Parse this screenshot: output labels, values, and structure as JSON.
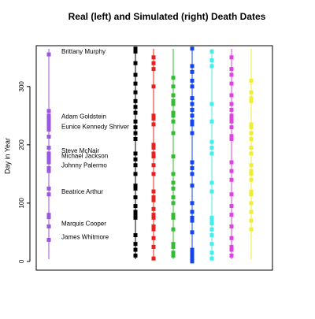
{
  "chart_data": {
    "type": "strip",
    "title": "Real (left) and Simulated (right) Death Dates",
    "ylabel": "Day in Year",
    "ylim": [
      -15,
      370
    ],
    "yticks": [
      0,
      100,
      200,
      300
    ],
    "series": [
      {
        "color": "#9b55e0",
        "values": [
          355,
          258,
          250,
          244,
          238,
          232,
          226,
          214,
          195,
          185,
          180,
          176,
          170,
          160,
          155,
          125,
          115,
          80,
          76,
          60,
          37
        ]
      },
      {
        "color": "#000000",
        "values": [
          365,
          360,
          340,
          320,
          305,
          290,
          275,
          265,
          255,
          240,
          230,
          220,
          210,
          185,
          175,
          165,
          150,
          130,
          125,
          110,
          95,
          85,
          80,
          75,
          45,
          30,
          20,
          10
        ]
      },
      {
        "color": "#e82020",
        "values": [
          350,
          340,
          330,
          300,
          250,
          245,
          235,
          200,
          195,
          185,
          180,
          165,
          150,
          120,
          110,
          105,
          90,
          80,
          75,
          60,
          55,
          40,
          25,
          5
        ]
      },
      {
        "color": "#33bb33",
        "values": [
          315,
          300,
          285,
          275,
          270,
          255,
          250,
          240,
          220,
          180,
          150,
          135,
          125,
          110,
          100,
          80,
          75,
          55,
          30,
          25,
          15,
          10
        ]
      },
      {
        "color": "#1144ee",
        "values": [
          365,
          335,
          325,
          310,
          300,
          280,
          270,
          260,
          250,
          240,
          235,
          220,
          170,
          160,
          150,
          130,
          100,
          85,
          75,
          70,
          50,
          20,
          15,
          10,
          5,
          0
        ]
      },
      {
        "color": "#44eeee",
        "values": [
          360,
          345,
          335,
          270,
          240,
          205,
          195,
          185,
          135,
          120,
          75,
          70,
          65,
          55,
          45,
          30,
          15,
          5
        ]
      },
      {
        "color": "#dd44dd",
        "values": [
          350,
          330,
          320,
          305,
          285,
          270,
          260,
          250,
          245,
          240,
          230,
          215,
          210,
          170,
          155,
          140,
          115,
          95,
          80,
          60,
          40,
          25,
          20,
          10
        ]
      },
      {
        "color": "#eeee33",
        "values": [
          310,
          290,
          280,
          275,
          235,
          230,
          220,
          210,
          195,
          185,
          165,
          155,
          150,
          140,
          120,
          115,
          100,
          85,
          70,
          55
        ]
      }
    ],
    "annotations": [
      {
        "label": "Brittany Murphy",
        "value": 355
      },
      {
        "label": "Adam Goldstein",
        "value": 244
      },
      {
        "label": "Eunice Kennedy Shriver",
        "value": 226
      },
      {
        "label": "Steve McNair",
        "value": 185
      },
      {
        "label": "Michael Jackson",
        "value": 176
      },
      {
        "label": "Johnny Palermo",
        "value": 160
      },
      {
        "label": "Beatrice Arthur",
        "value": 115
      },
      {
        "label": "Marquis Cooper",
        "value": 60
      },
      {
        "label": "James Whitmore",
        "value": 37
      }
    ]
  }
}
